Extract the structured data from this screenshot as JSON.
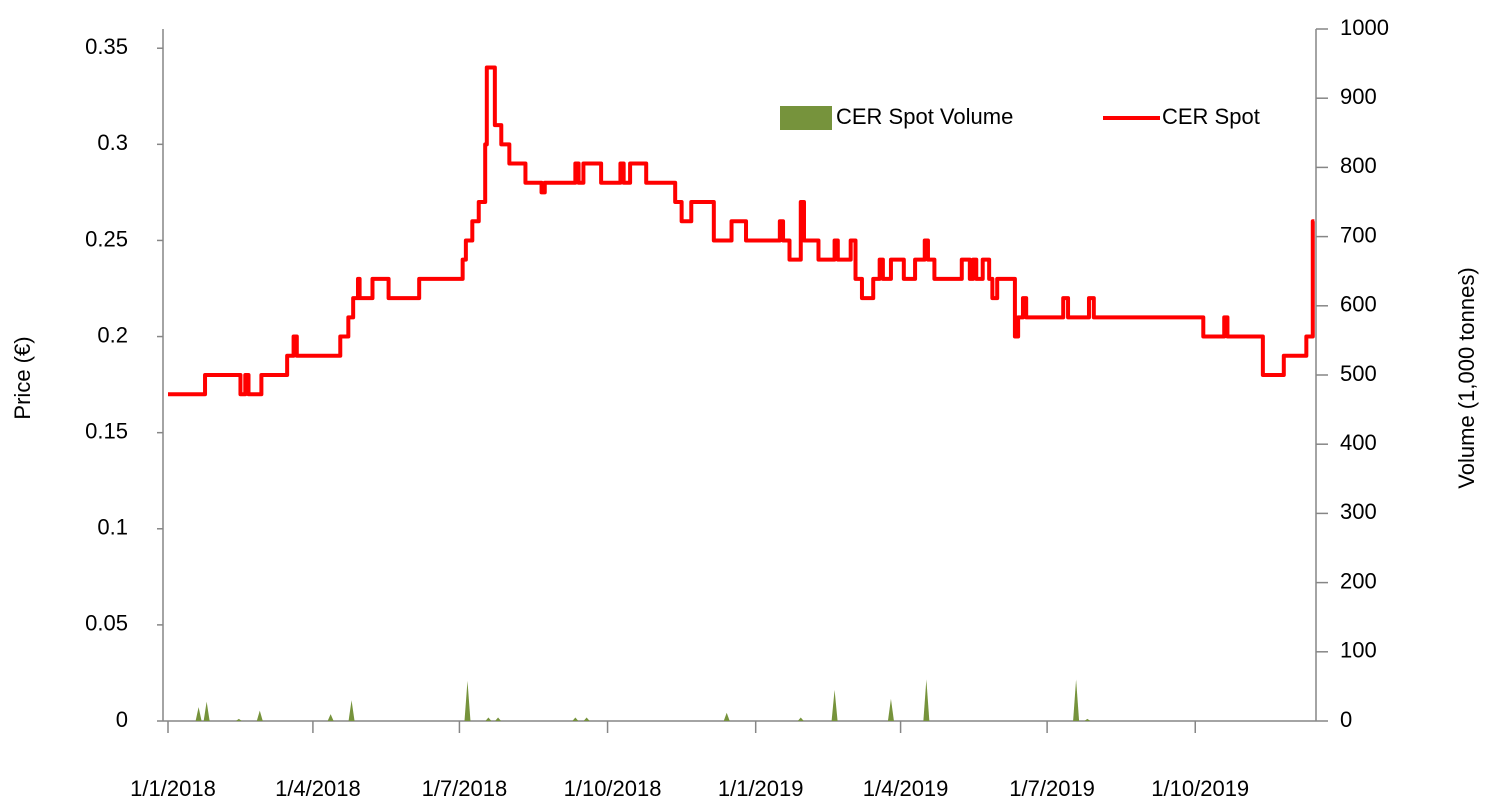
{
  "chart_data": {
    "type": "line",
    "y_label": "Price (€)",
    "y2_label": "Volume (1,000 tonnes)",
    "xlim": [
      "2018-01-01",
      "2019-12-15"
    ],
    "xticks": [
      {
        "value": "2018-01-01",
        "label": "1/1/2018"
      },
      {
        "value": "2018-04-01",
        "label": "1/4/2018"
      },
      {
        "value": "2018-07-01",
        "label": "1/7/2018"
      },
      {
        "value": "2018-10-01",
        "label": "1/10/2018"
      },
      {
        "value": "2019-01-01",
        "label": "1/1/2019"
      },
      {
        "value": "2019-04-01",
        "label": "1/4/2019"
      },
      {
        "value": "2019-07-01",
        "label": "1/7/2019"
      },
      {
        "value": "2019-10-01",
        "label": "1/10/2019"
      }
    ],
    "ylim": [
      0,
      0.36
    ],
    "yticks": [
      0,
      0.05,
      0.1,
      0.15,
      0.2,
      0.25,
      0.3,
      0.35
    ],
    "y2lim": [
      0,
      1000
    ],
    "y2ticks": [
      0,
      100,
      200,
      300,
      400,
      500,
      600,
      700,
      800,
      900,
      1000
    ],
    "legend": "upper right",
    "series": [
      {
        "name": "CER Spot Volume",
        "type": "area",
        "axis": "y2",
        "color": "#76933c",
        "x": [
          "2018-01-20",
          "2018-01-25",
          "2018-02-14",
          "2018-02-27",
          "2018-04-12",
          "2018-04-25",
          "2018-07-06",
          "2018-07-19",
          "2018-07-25",
          "2018-09-11",
          "2018-09-18",
          "2018-12-14",
          "2019-01-29",
          "2019-02-19",
          "2019-03-26",
          "2019-04-17",
          "2019-07-19",
          "2019-07-26"
        ],
        "values": [
          20,
          28,
          3,
          15,
          10,
          30,
          58,
          5,
          5,
          5,
          5,
          12,
          5,
          45,
          32,
          60,
          60,
          3
        ]
      },
      {
        "name": "CER Spot",
        "type": "line",
        "axis": "y",
        "color": "#ff0000",
        "x": [
          "2018-01-01",
          "2018-01-24",
          "2018-02-15",
          "2018-02-18",
          "2018-02-20",
          "2018-02-28",
          "2018-03-16",
          "2018-03-20",
          "2018-03-22",
          "2018-04-18",
          "2018-04-23",
          "2018-04-26",
          "2018-04-29",
          "2018-04-30",
          "2018-05-08",
          "2018-05-18",
          "2018-06-06",
          "2018-07-03",
          "2018-07-05",
          "2018-07-09",
          "2018-07-13",
          "2018-07-17",
          "2018-07-18",
          "2018-07-23",
          "2018-07-27",
          "2018-08-01",
          "2018-08-11",
          "2018-08-21",
          "2018-08-23",
          "2018-09-11",
          "2018-09-13",
          "2018-09-16",
          "2018-09-27",
          "2018-10-09",
          "2018-10-11",
          "2018-10-15",
          "2018-10-25",
          "2018-11-12",
          "2018-11-16",
          "2018-11-22",
          "2018-12-06",
          "2018-12-17",
          "2018-12-26",
          "2019-01-16",
          "2019-01-18",
          "2019-01-22",
          "2019-01-29",
          "2019-01-31",
          "2019-02-09",
          "2019-02-19",
          "2019-02-21",
          "2019-03-01",
          "2019-03-04",
          "2019-03-08",
          "2019-03-15",
          "2019-03-19",
          "2019-03-21",
          "2019-03-26",
          "2019-04-03",
          "2019-04-10",
          "2019-04-16",
          "2019-04-18",
          "2019-04-22",
          "2019-05-09",
          "2019-05-14",
          "2019-05-16",
          "2019-05-18",
          "2019-05-22",
          "2019-05-26",
          "2019-05-28",
          "2019-05-31",
          "2019-06-11",
          "2019-06-13",
          "2019-06-16",
          "2019-06-18",
          "2019-07-11",
          "2019-07-14",
          "2019-07-27",
          "2019-07-30",
          "2019-10-06",
          "2019-10-19",
          "2019-10-21",
          "2019-11-12",
          "2019-11-25",
          "2019-12-09",
          "2019-12-13",
          "2019-12-14"
        ],
        "values": [
          0.17,
          0.18,
          0.17,
          0.18,
          0.17,
          0.18,
          0.19,
          0.2,
          0.19,
          0.2,
          0.21,
          0.22,
          0.23,
          0.22,
          0.23,
          0.22,
          0.23,
          0.24,
          0.25,
          0.26,
          0.27,
          0.3,
          0.34,
          0.31,
          0.3,
          0.29,
          0.28,
          0.275,
          0.28,
          0.29,
          0.28,
          0.29,
          0.28,
          0.29,
          0.28,
          0.29,
          0.28,
          0.27,
          0.26,
          0.27,
          0.25,
          0.26,
          0.25,
          0.26,
          0.25,
          0.24,
          0.27,
          0.25,
          0.24,
          0.25,
          0.24,
          0.25,
          0.23,
          0.22,
          0.23,
          0.24,
          0.23,
          0.24,
          0.23,
          0.24,
          0.25,
          0.24,
          0.23,
          0.24,
          0.23,
          0.24,
          0.23,
          0.24,
          0.23,
          0.22,
          0.23,
          0.2,
          0.21,
          0.22,
          0.21,
          0.22,
          0.21,
          0.22,
          0.21,
          0.2,
          0.21,
          0.2,
          0.18,
          0.19,
          0.2,
          0.26,
          0.26
        ]
      }
    ]
  }
}
